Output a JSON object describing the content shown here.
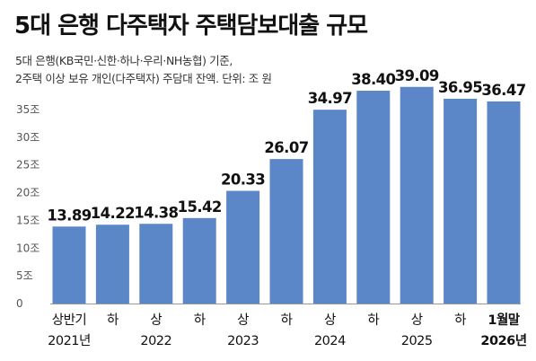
{
  "title": "5대 은행 다주택자 주택담보대출 규모",
  "subtitle": {
    "line1": "5대 은행(KB국민·신한·하나·우리·NH농협) 기준,",
    "line2": "2주택 이상 보유 개인(다주택자) 주담대 잔액. 단위: 조 원"
  },
  "colors": {
    "bar": "#5b86c8",
    "axis": "#999999"
  },
  "chart_data": {
    "type": "bar",
    "unit": "조 원",
    "ylim": [
      0,
      40
    ],
    "yticks": [
      "0",
      "5조",
      "10조",
      "15조",
      "20조",
      "25조",
      "30조",
      "35조"
    ],
    "ytick_values": [
      0,
      5,
      10,
      15,
      20,
      25,
      30,
      35
    ],
    "categories": [
      "상반기",
      "하",
      "상",
      "하",
      "상",
      "하",
      "상",
      "하",
      "상",
      "하",
      "1월말"
    ],
    "year_labels": [
      "2021년",
      "",
      "2022",
      "",
      "2023",
      "",
      "2024",
      "",
      "2025",
      "",
      "2026년"
    ],
    "values": [
      13.89,
      14.22,
      14.38,
      15.42,
      20.33,
      26.07,
      34.97,
      38.4,
      39.09,
      36.95,
      36.47
    ],
    "value_labels": [
      "13.89",
      "14.22",
      "14.38",
      "15.42",
      "20.33",
      "26.07",
      "34.97",
      "38.40",
      "39.09",
      "36.95",
      "36.47"
    ],
    "grid": false
  }
}
